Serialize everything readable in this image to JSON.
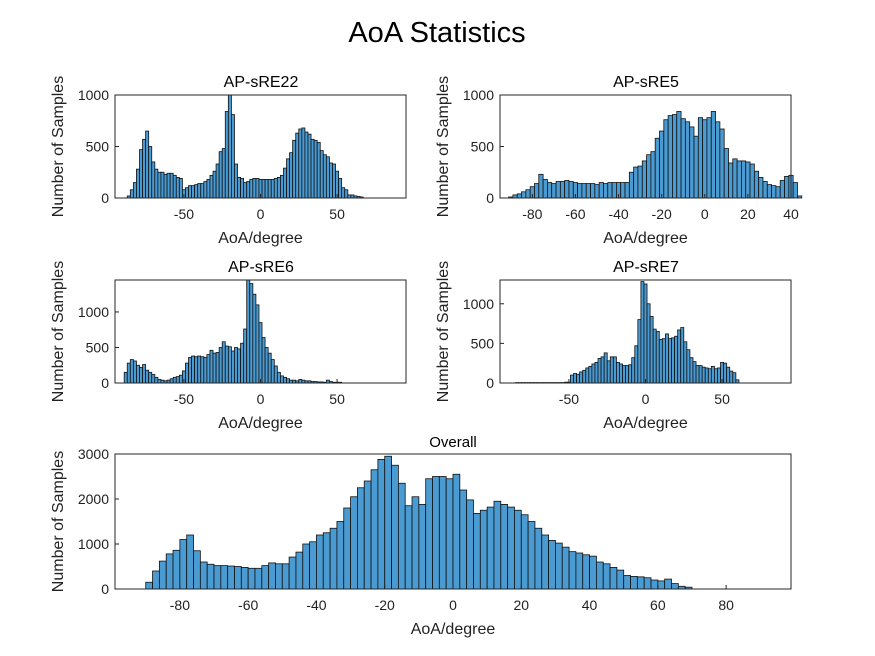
{
  "title": "AoA Statistics",
  "colors": {
    "bar_fill": "#4b9bd3",
    "bar_edge": "#111111",
    "axes": "#262626"
  },
  "chart_data": [
    {
      "type": "bar",
      "subtype": "histogram",
      "title": "AP-sRE22",
      "xlabel": "AoA/degree",
      "ylabel": "Number of Samples",
      "xlim": [
        -95,
        95
      ],
      "ylim": [
        0,
        1000
      ],
      "xticks": [
        -50,
        0,
        50
      ],
      "yticks": [
        0,
        500,
        1000
      ],
      "bin_start": -87,
      "bin_width": 2,
      "values": [
        20,
        80,
        150,
        280,
        470,
        570,
        650,
        500,
        350,
        280,
        250,
        250,
        230,
        240,
        240,
        220,
        200,
        190,
        80,
        100,
        120,
        120,
        130,
        140,
        140,
        160,
        180,
        220,
        260,
        330,
        450,
        480,
        840,
        1000,
        810,
        330,
        200,
        190,
        150,
        160,
        180,
        190,
        190,
        180,
        180,
        180,
        180,
        180,
        190,
        200,
        220,
        290,
        380,
        440,
        560,
        630,
        670,
        680,
        640,
        620,
        570,
        560,
        540,
        460,
        420,
        400,
        340,
        330,
        260,
        190,
        100,
        80,
        30,
        30,
        20,
        15,
        10
      ]
    },
    {
      "type": "bar",
      "subtype": "histogram",
      "title": "AP-sRE5",
      "xlabel": "AoA/degree",
      "ylabel": "Number of Samples",
      "xlim": [
        -95,
        40
      ],
      "ylim": [
        0,
        1000
      ],
      "xticks": [
        -80,
        -60,
        -40,
        -20,
        0,
        20,
        40
      ],
      "yticks": [
        0,
        500,
        1000
      ],
      "bin_start": -91,
      "bin_width": 2,
      "values": [
        10,
        30,
        40,
        60,
        80,
        110,
        140,
        230,
        180,
        150,
        140,
        160,
        160,
        170,
        160,
        150,
        140,
        140,
        140,
        140,
        130,
        150,
        140,
        150,
        150,
        150,
        150,
        150,
        250,
        300,
        310,
        360,
        420,
        450,
        580,
        650,
        760,
        800,
        810,
        840,
        770,
        740,
        690,
        600,
        780,
        760,
        780,
        840,
        740,
        670,
        480,
        340,
        380,
        360,
        360,
        350,
        330,
        260,
        200,
        160,
        130,
        120,
        110,
        170,
        210,
        220,
        150,
        20
      ]
    },
    {
      "type": "bar",
      "subtype": "histogram",
      "title": "AP-sRE6",
      "xlabel": "AoA/degree",
      "ylabel": "Number of Samples",
      "xlim": [
        -95,
        95
      ],
      "ylim": [
        0,
        1450
      ],
      "xticks": [
        -50,
        0,
        50
      ],
      "yticks": [
        0,
        500,
        1000
      ],
      "bin_start": -89,
      "bin_width": 2,
      "values": [
        150,
        280,
        330,
        310,
        250,
        220,
        260,
        180,
        150,
        120,
        80,
        50,
        40,
        30,
        40,
        60,
        80,
        90,
        110,
        170,
        280,
        360,
        380,
        370,
        380,
        370,
        360,
        400,
        460,
        420,
        430,
        500,
        580,
        520,
        510,
        450,
        500,
        480,
        560,
        760,
        1450,
        1400,
        1250,
        1100,
        850,
        640,
        500,
        420,
        330,
        240,
        150,
        100,
        80,
        60,
        40,
        40,
        30,
        50,
        40,
        30,
        30,
        20,
        20,
        15,
        15,
        10,
        40,
        20,
        10,
        10,
        10
      ]
    },
    {
      "type": "bar",
      "subtype": "histogram",
      "title": "AP-sRE7",
      "xlabel": "AoA/degree",
      "ylabel": "Number of Samples",
      "xlim": [
        -95,
        95
      ],
      "ylim": [
        0,
        1300
      ],
      "xticks": [
        -50,
        0,
        50
      ],
      "yticks": [
        0,
        500,
        1000
      ],
      "bin_start": -85,
      "bin_width": 2,
      "values": [
        5,
        5,
        5,
        5,
        5,
        5,
        5,
        5,
        5,
        5,
        5,
        5,
        5,
        5,
        5,
        5,
        10,
        10,
        100,
        120,
        110,
        140,
        160,
        190,
        210,
        240,
        260,
        310,
        330,
        380,
        280,
        330,
        330,
        260,
        240,
        220,
        220,
        230,
        320,
        470,
        800,
        1280,
        1250,
        1000,
        840,
        680,
        650,
        550,
        560,
        620,
        560,
        570,
        590,
        670,
        700,
        520,
        420,
        320,
        270,
        220,
        220,
        200,
        190,
        180,
        210,
        180,
        190,
        260,
        250,
        200,
        150,
        130,
        40
      ]
    },
    {
      "type": "bar",
      "subtype": "histogram",
      "title": "Overall",
      "xlabel": "AoA/degree",
      "ylabel": "Number of Samples",
      "xlim": [
        -99,
        99
      ],
      "ylim": [
        0,
        3000
      ],
      "xticks": [
        -80,
        -60,
        -40,
        -20,
        0,
        20,
        40,
        60,
        80
      ],
      "yticks": [
        0,
        1000,
        2000,
        3000
      ],
      "bin_start": -90,
      "bin_width": 2,
      "values": [
        150,
        400,
        620,
        780,
        860,
        1100,
        1200,
        850,
        600,
        550,
        520,
        520,
        510,
        500,
        480,
        460,
        460,
        520,
        580,
        560,
        560,
        710,
        820,
        1000,
        1050,
        1200,
        1250,
        1350,
        1500,
        1800,
        2050,
        2250,
        2400,
        2650,
        2880,
        2950,
        2750,
        2350,
        1850,
        2050,
        1880,
        2450,
        2500,
        2500,
        2450,
        2550,
        2200,
        1980,
        1680,
        1750,
        1820,
        1950,
        1880,
        1820,
        1750,
        1650,
        1500,
        1350,
        1200,
        1080,
        1020,
        930,
        830,
        800,
        760,
        730,
        600,
        560,
        480,
        420,
        300,
        280,
        270,
        250,
        200,
        180,
        220,
        120,
        60,
        40
      ]
    }
  ]
}
